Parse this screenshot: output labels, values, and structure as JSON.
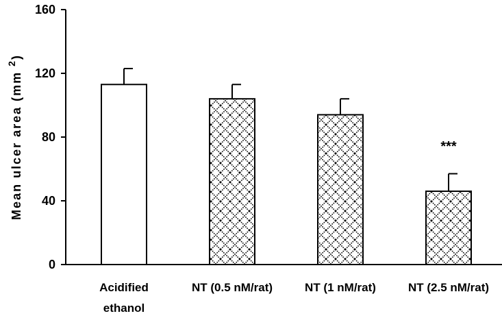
{
  "chart_data": {
    "type": "bar",
    "title": "",
    "xlabel": "",
    "ylabel": "Mean ulcer area (mm",
    "ylabel_superscript": "2",
    "ylabel_close": ")",
    "ylim": [
      0,
      160
    ],
    "yticks": [
      0,
      40,
      80,
      120,
      160
    ],
    "categories": [
      [
        "Acidified",
        "ethanol"
      ],
      [
        "NT (0.5 nM/rat)"
      ],
      [
        "NT (1 nM/rat)"
      ],
      [
        "NT (2.5 nM/rat)"
      ]
    ],
    "values": [
      113,
      104,
      94,
      46
    ],
    "errors": [
      10,
      9,
      10,
      11
    ],
    "patterns": [
      "none",
      "crosshatch",
      "crosshatch",
      "crosshatch"
    ],
    "annotations": [
      {
        "category_index": 3,
        "text": "***"
      }
    ],
    "grid": false,
    "colors": {
      "bar_edge": "#000000",
      "hatch": "#000000",
      "fill": "#ffffff"
    }
  }
}
